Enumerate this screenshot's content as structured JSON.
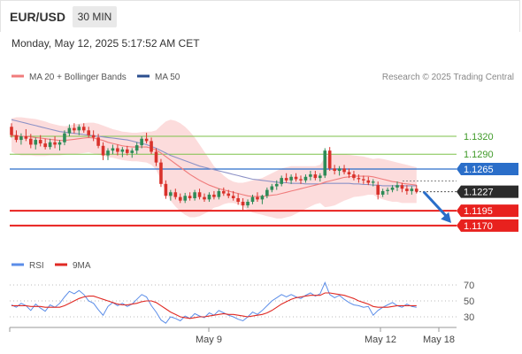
{
  "header": {
    "symbol": "EUR/USD",
    "timeframe": "30 MIN",
    "datetime": "Monday, May 12, 2025 5:17:52 AM CET"
  },
  "legend": {
    "ma20_label": "MA 20 + Bollinger Bands",
    "ma50_label": "MA 50",
    "copyright": "Research © 2025 Trading Central",
    "rsi_label": "RSI",
    "rsi_ma_label": "9MA"
  },
  "colors": {
    "up": "#2e8b57",
    "down": "#d9322b",
    "ma20": "#f07c7c",
    "band": "#fbd0d0",
    "ma50": "#8c91c6",
    "ma50_legend": "#2b4f8f",
    "support": "#e8211e",
    "target_line": "#2a6ec9",
    "green_level": "#7dc24a",
    "arrow": "#2a6ec9",
    "rsi": "#5b8de8",
    "rsi_ma": "#e02a24"
  },
  "chart_data": [
    {
      "type": "candlestick",
      "title": "EUR/USD",
      "timeframe": "30 MIN",
      "x_ticks": [
        "May 9",
        "May 12",
        "May 18"
      ],
      "ylim": [
        1.1158,
        1.1381
      ],
      "price_levels": [
        {
          "value": 1.132,
          "label": "1.1320",
          "kind": "resistance"
        },
        {
          "value": 1.129,
          "label": "1.1290",
          "kind": "resistance"
        },
        {
          "value": 1.1265,
          "label": "1.1265",
          "kind": "pivot"
        },
        {
          "value": 1.1227,
          "label": "1.1227",
          "kind": "last_price"
        },
        {
          "value": 1.1195,
          "label": "1.1195",
          "kind": "support"
        },
        {
          "value": 1.117,
          "label": "1.1170",
          "kind": "support"
        }
      ],
      "forecast": {
        "direction": "down",
        "from": 1.1227,
        "to": 1.117
      },
      "candles": [
        [
          1.1336,
          1.1342,
          1.1318,
          1.1322
        ],
        [
          1.1322,
          1.133,
          1.131,
          1.1314
        ],
        [
          1.1314,
          1.1325,
          1.1306,
          1.132
        ],
        [
          1.132,
          1.1332,
          1.1312,
          1.1316
        ],
        [
          1.1316,
          1.1324,
          1.13,
          1.1306
        ],
        [
          1.1306,
          1.1318,
          1.1298,
          1.1314
        ],
        [
          1.1314,
          1.1322,
          1.1303,
          1.1308
        ],
        [
          1.1308,
          1.1316,
          1.1298,
          1.1302
        ],
        [
          1.1302,
          1.1316,
          1.1298,
          1.131
        ],
        [
          1.131,
          1.132,
          1.13,
          1.1306
        ],
        [
          1.1306,
          1.1314,
          1.1296,
          1.131
        ],
        [
          1.131,
          1.133,
          1.1305,
          1.1325
        ],
        [
          1.1325,
          1.134,
          1.132,
          1.1334
        ],
        [
          1.1334,
          1.1342,
          1.1325,
          1.133
        ],
        [
          1.133,
          1.134,
          1.1322,
          1.1336
        ],
        [
          1.1336,
          1.1342,
          1.1326,
          1.133
        ],
        [
          1.133,
          1.1336,
          1.1318,
          1.1322
        ],
        [
          1.1322,
          1.133,
          1.1312,
          1.1318
        ],
        [
          1.1318,
          1.1324,
          1.13,
          1.1304
        ],
        [
          1.1304,
          1.131,
          1.128,
          1.1288
        ],
        [
          1.1288,
          1.13,
          1.128,
          1.1296
        ],
        [
          1.1296,
          1.1306,
          1.129,
          1.13
        ],
        [
          1.13,
          1.1306,
          1.1288,
          1.1294
        ],
        [
          1.1294,
          1.1302,
          1.1285,
          1.1298
        ],
        [
          1.1298,
          1.1304,
          1.1288,
          1.1292
        ],
        [
          1.1292,
          1.13,
          1.1284,
          1.1296
        ],
        [
          1.1296,
          1.131,
          1.129,
          1.1305
        ],
        [
          1.1305,
          1.132,
          1.13,
          1.1316
        ],
        [
          1.1316,
          1.1326,
          1.1308,
          1.1312
        ],
        [
          1.1312,
          1.1318,
          1.129,
          1.1294
        ],
        [
          1.1294,
          1.13,
          1.127,
          1.1276
        ],
        [
          1.1276,
          1.1282,
          1.1235,
          1.124
        ],
        [
          1.124,
          1.1246,
          1.1215,
          1.122
        ],
        [
          1.122,
          1.123,
          1.1212,
          1.1226
        ],
        [
          1.1226,
          1.1232,
          1.1214,
          1.1218
        ],
        [
          1.1218,
          1.1224,
          1.1208,
          1.1212
        ],
        [
          1.1212,
          1.1225,
          1.1208,
          1.122
        ],
        [
          1.122,
          1.1226,
          1.1212,
          1.1216
        ],
        [
          1.1216,
          1.123,
          1.1212,
          1.1226
        ],
        [
          1.1226,
          1.1232,
          1.1214,
          1.1218
        ],
        [
          1.1218,
          1.1224,
          1.121,
          1.1214
        ],
        [
          1.1214,
          1.1226,
          1.121,
          1.1222
        ],
        [
          1.1222,
          1.1228,
          1.1214,
          1.1218
        ],
        [
          1.1218,
          1.1232,
          1.1214,
          1.1228
        ],
        [
          1.1228,
          1.1234,
          1.122,
          1.1224
        ],
        [
          1.1224,
          1.123,
          1.1216,
          1.122
        ],
        [
          1.122,
          1.1228,
          1.1212,
          1.1216
        ],
        [
          1.1216,
          1.1224,
          1.1205,
          1.121
        ],
        [
          1.121,
          1.1216,
          1.1196,
          1.1204
        ],
        [
          1.1204,
          1.1214,
          1.12,
          1.121
        ],
        [
          1.121,
          1.1222,
          1.1206,
          1.1218
        ],
        [
          1.1218,
          1.1226,
          1.121,
          1.1214
        ],
        [
          1.1214,
          1.1222,
          1.1206,
          1.122
        ],
        [
          1.122,
          1.1234,
          1.1216,
          1.123
        ],
        [
          1.123,
          1.124,
          1.1226,
          1.1236
        ],
        [
          1.1236,
          1.1246,
          1.123,
          1.124
        ],
        [
          1.124,
          1.1254,
          1.1236,
          1.125
        ],
        [
          1.125,
          1.1258,
          1.1242,
          1.1246
        ],
        [
          1.1246,
          1.1256,
          1.124,
          1.1252
        ],
        [
          1.1252,
          1.1258,
          1.1244,
          1.1248
        ],
        [
          1.1248,
          1.1254,
          1.124,
          1.1246
        ],
        [
          1.1246,
          1.1256,
          1.1242,
          1.1252
        ],
        [
          1.1252,
          1.1262,
          1.1246,
          1.1256
        ],
        [
          1.1256,
          1.1262,
          1.1246,
          1.125
        ],
        [
          1.125,
          1.1258,
          1.1244,
          1.1254
        ],
        [
          1.1254,
          1.13,
          1.125,
          1.1296
        ],
        [
          1.1296,
          1.1302,
          1.1262,
          1.1266
        ],
        [
          1.1266,
          1.1272,
          1.1256,
          1.1262
        ],
        [
          1.1262,
          1.127,
          1.1254,
          1.1266
        ],
        [
          1.1266,
          1.1272,
          1.1256,
          1.126
        ],
        [
          1.126,
          1.1266,
          1.125,
          1.1256
        ],
        [
          1.1256,
          1.1262,
          1.1246,
          1.125
        ],
        [
          1.125,
          1.1256,
          1.1242,
          1.1248
        ],
        [
          1.1248,
          1.1254,
          1.124,
          1.1246
        ],
        [
          1.1246,
          1.1252,
          1.1238,
          1.1242
        ],
        [
          1.1242,
          1.1248,
          1.1236,
          1.1244
        ],
        [
          1.1238,
          1.1244,
          1.1214,
          1.1222
        ],
        [
          1.1222,
          1.1232,
          1.1218,
          1.1228
        ],
        [
          1.1228,
          1.1234,
          1.1222,
          1.123
        ],
        [
          1.123,
          1.1238,
          1.1226,
          1.1234
        ],
        [
          1.1234,
          1.1244,
          1.1228,
          1.1238
        ],
        [
          1.1238,
          1.1242,
          1.1226,
          1.1232
        ],
        [
          1.1232,
          1.1238,
          1.1222,
          1.1228
        ],
        [
          1.1228,
          1.1236,
          1.1222,
          1.1232
        ],
        [
          1.1232,
          1.1238,
          1.1224,
          1.1227
        ]
      ],
      "ma20": [
        1.1322,
        1.1321,
        1.132,
        1.132,
        1.1319,
        1.1318,
        1.1317,
        1.1316,
        1.1315,
        1.1314,
        1.1313,
        1.1313,
        1.1314,
        1.1315,
        1.1316,
        1.1317,
        1.1318,
        1.1317,
        1.1315,
        1.1313,
        1.131,
        1.1308,
        1.1306,
        1.1304,
        1.1303,
        1.1302,
        1.1302,
        1.1302,
        1.1302,
        1.13,
        1.1297,
        1.1292,
        1.1286,
        1.128,
        1.1274,
        1.1268,
        1.1262,
        1.1256,
        1.1251,
        1.1246,
        1.1242,
        1.1238,
        1.1235,
        1.1232,
        1.123,
        1.1228,
        1.1226,
        1.1224,
        1.1222,
        1.122,
        1.1219,
        1.1219,
        1.1219,
        1.122,
        1.1221,
        1.1222,
        1.1224,
        1.1226,
        1.1228,
        1.123,
        1.1232,
        1.1234,
        1.1236,
        1.1238,
        1.124,
        1.1243,
        1.1245,
        1.1247,
        1.1249,
        1.1251,
        1.1252,
        1.1253,
        1.1253,
        1.1253,
        1.1253,
        1.1252,
        1.125,
        1.1248,
        1.1246,
        1.1244,
        1.1243,
        1.1241,
        1.124,
        1.1239,
        1.1238
      ],
      "bb_upper": [
        1.135,
        1.1352,
        1.1352,
        1.1351,
        1.135,
        1.1349,
        1.1347,
        1.1345,
        1.1342,
        1.134,
        1.1338,
        1.1337,
        1.1338,
        1.134,
        1.1341,
        1.1342,
        1.1343,
        1.1343,
        1.1341,
        1.1338,
        1.1335,
        1.1332,
        1.133,
        1.1328,
        1.1327,
        1.1326,
        1.1326,
        1.1327,
        1.1328,
        1.1328,
        1.133,
        1.1338,
        1.1345,
        1.1348,
        1.1346,
        1.1342,
        1.1336,
        1.1328,
        1.1318,
        1.1306,
        1.1294,
        1.1282,
        1.127,
        1.1262,
        1.1254,
        1.1248,
        1.1244,
        1.1242,
        1.1242,
        1.1244,
        1.1246,
        1.1248,
        1.125,
        1.1254,
        1.1258,
        1.1262,
        1.1266,
        1.1268,
        1.127,
        1.127,
        1.127,
        1.127,
        1.127,
        1.127,
        1.1272,
        1.1285,
        1.1288,
        1.129,
        1.129,
        1.129,
        1.1289,
        1.1288,
        1.1287,
        1.1286,
        1.1284,
        1.1282,
        1.1283,
        1.1282,
        1.128,
        1.1278,
        1.1276,
        1.1274,
        1.1272,
        1.127,
        1.1268
      ],
      "bb_lower": [
        1.1294,
        1.129,
        1.1288,
        1.1288,
        1.1288,
        1.1287,
        1.1287,
        1.1287,
        1.1288,
        1.1288,
        1.1288,
        1.1289,
        1.129,
        1.129,
        1.1291,
        1.1292,
        1.1293,
        1.1291,
        1.1289,
        1.1288,
        1.1285,
        1.1284,
        1.1282,
        1.128,
        1.1279,
        1.1278,
        1.1278,
        1.1277,
        1.1276,
        1.1272,
        1.1264,
        1.1246,
        1.1227,
        1.1212,
        1.1202,
        1.1194,
        1.1188,
        1.1184,
        1.1184,
        1.1186,
        1.119,
        1.1194,
        1.12,
        1.1202,
        1.1206,
        1.1208,
        1.1208,
        1.1206,
        1.1202,
        1.1196,
        1.1192,
        1.119,
        1.1188,
        1.1186,
        1.1184,
        1.1182,
        1.1182,
        1.1184,
        1.1186,
        1.119,
        1.1194,
        1.1198,
        1.1202,
        1.1206,
        1.1208,
        1.1201,
        1.1202,
        1.1204,
        1.1208,
        1.1212,
        1.1215,
        1.1218,
        1.1219,
        1.122,
        1.1222,
        1.1222,
        1.1217,
        1.1214,
        1.1212,
        1.121,
        1.121,
        1.1208,
        1.1208,
        1.1208,
        1.1208
      ],
      "ma50": [
        1.1348,
        1.1346,
        1.1344,
        1.1342,
        1.134,
        1.1338,
        1.1336,
        1.1334,
        1.1332,
        1.133,
        1.1328,
        1.1327,
        1.1326,
        1.1325,
        1.1324,
        1.1323,
        1.1322,
        1.1321,
        1.132,
        1.1319,
        1.1318,
        1.1317,
        1.1316,
        1.1315,
        1.1314,
        1.1312,
        1.131,
        1.1308,
        1.1306,
        1.1303,
        1.13,
        1.1296,
        1.1292,
        1.1288,
        1.1285,
        1.1282,
        1.1279,
        1.1276,
        1.1273,
        1.127,
        1.1268,
        1.1266,
        1.1264,
        1.1262,
        1.126,
        1.1258,
        1.1256,
        1.1254,
        1.1252,
        1.125,
        1.1248,
        1.1247,
        1.1246,
        1.1245,
        1.1244,
        1.1243,
        1.1242,
        1.1242,
        1.1241,
        1.1241,
        1.1241,
        1.124,
        1.124,
        1.124,
        1.124,
        1.1241,
        1.1241,
        1.1241,
        1.1241,
        1.1241,
        1.1241,
        1.124,
        1.124,
        1.1239,
        1.1239,
        1.1238,
        1.1238,
        1.1237,
        1.1237,
        1.1237,
        1.1237,
        1.1237,
        1.1237,
        1.1237,
        1.1237
      ]
    },
    {
      "type": "line",
      "title": "RSI",
      "series_names": [
        "RSI",
        "9MA"
      ],
      "y_ticks": [
        70,
        50,
        30
      ],
      "ylim": [
        20,
        80
      ],
      "rsi": [
        45,
        42,
        47,
        44,
        38,
        46,
        41,
        37,
        45,
        42,
        47,
        55,
        62,
        59,
        63,
        58,
        50,
        47,
        39,
        32,
        43,
        48,
        44,
        47,
        43,
        46,
        52,
        58,
        55,
        44,
        36,
        26,
        22,
        30,
        28,
        25,
        31,
        28,
        34,
        31,
        29,
        35,
        32,
        38,
        35,
        32,
        30,
        27,
        25,
        30,
        36,
        33,
        38,
        44,
        50,
        54,
        58,
        55,
        58,
        55,
        53,
        57,
        60,
        56,
        59,
        73,
        58,
        54,
        57,
        52,
        48,
        45,
        44,
        42,
        43,
        32,
        38,
        42,
        45,
        48,
        44,
        42,
        46,
        43,
        42
      ],
      "rsi_ma": [
        44,
        44,
        44,
        44,
        43,
        43,
        43,
        42,
        42,
        42,
        42,
        44,
        47,
        50,
        53,
        55,
        56,
        56,
        54,
        52,
        50,
        48,
        46,
        45,
        45,
        46,
        47,
        49,
        50,
        50,
        48,
        44,
        40,
        36,
        33,
        30,
        29,
        28,
        29,
        30,
        30,
        31,
        32,
        33,
        34,
        33,
        33,
        32,
        31,
        30,
        31,
        32,
        33,
        35,
        38,
        42,
        46,
        49,
        52,
        54,
        55,
        56,
        57,
        57,
        57,
        60,
        60,
        59,
        58,
        57,
        55,
        53,
        50,
        48,
        46,
        43,
        42,
        42,
        42,
        43,
        44,
        44,
        44,
        44,
        44
      ]
    }
  ]
}
